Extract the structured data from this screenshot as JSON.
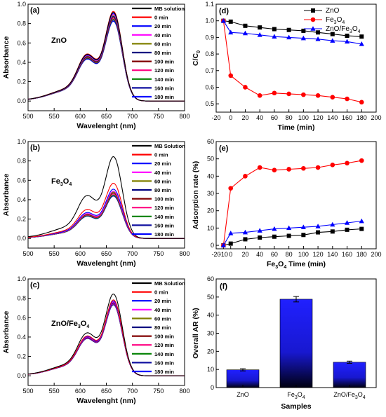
{
  "colors": {
    "black": "#000000",
    "red": "#ff0000",
    "blue": "#0000ff",
    "magenta": "#ff00ff",
    "olive": "#808000",
    "navy": "#000080",
    "dark_red": "#800000",
    "pink": "#ff0080",
    "green": "#008000",
    "dark_blue": "#1010a0",
    "bar_top": "#2020ff",
    "bar_bottom": "#000010"
  },
  "chart_data": [
    {
      "id": "a",
      "type": "line",
      "panel_label": "(a)",
      "annotation": {
        "main": "ZnO",
        "sub": ""
      },
      "xlabel": "Wavelenght (nm)",
      "ylabel": "Absorbance",
      "xlim": [
        500,
        800
      ],
      "ylim": [
        -0.1,
        1.0
      ],
      "xticks": [
        500,
        550,
        600,
        650,
        700,
        750,
        800
      ],
      "yticks": [
        0.0,
        0.2,
        0.4,
        0.6,
        0.8,
        1.0
      ],
      "legend_position": "top-right",
      "legend": [
        "MB solution",
        "0 min",
        "20 min",
        "40 min",
        "60 min",
        "80 min",
        "100 min",
        "120 min",
        "140 min",
        "160 min",
        "180 min"
      ],
      "series_colors": [
        "black",
        "red",
        "blue",
        "magenta",
        "olive",
        "navy",
        "dark_red",
        "pink",
        "green",
        "dark_blue",
        "blue"
      ],
      "peak_heights": [
        0.9,
        0.91,
        0.89,
        0.88,
        0.87,
        0.86,
        0.85,
        0.84,
        0.83,
        0.82,
        0.81
      ],
      "shoulder_ratio": 0.5
    },
    {
      "id": "b",
      "type": "line",
      "panel_label": "(b)",
      "annotation": {
        "main": "Fe",
        "sub": "3",
        "main2": "O",
        "sub2": "4"
      },
      "xlabel": "Wavelenght (nm)",
      "ylabel": "Absorbance",
      "xlim": [
        500,
        800
      ],
      "ylim": [
        -0.1,
        1.0
      ],
      "xticks": [
        500,
        550,
        600,
        650,
        700,
        750,
        800
      ],
      "yticks": [
        0.0,
        0.2,
        0.4,
        0.6,
        0.8,
        1.0
      ],
      "legend_position": "top-right",
      "legend": [
        "MB Solution",
        "0 min",
        "20 min",
        "40 min",
        "60 min",
        "80 min",
        "100 min",
        "120 min",
        "140 min",
        "160 min",
        "180 min"
      ],
      "series_colors": [
        "black",
        "red",
        "blue",
        "magenta",
        "olive",
        "navy",
        "dark_red",
        "pink",
        "green",
        "dark_blue",
        "blue"
      ],
      "peak_heights": [
        0.83,
        0.56,
        0.5,
        0.48,
        0.47,
        0.47,
        0.46,
        0.45,
        0.44,
        0.43,
        0.43
      ],
      "shoulder_ratio": 0.5
    },
    {
      "id": "c",
      "type": "line",
      "panel_label": "(c)",
      "annotation": {
        "main": "ZnO/Fe",
        "sub": "3",
        "main2": "O",
        "sub2": "4"
      },
      "xlabel": "Wavelenght (nm)",
      "ylabel": "Absorbance",
      "xlim": [
        500,
        800
      ],
      "ylim": [
        -0.1,
        1.0
      ],
      "xticks": [
        500,
        550,
        600,
        650,
        700,
        750,
        800
      ],
      "yticks": [
        0.0,
        0.2,
        0.4,
        0.6,
        0.8,
        1.0
      ],
      "legend_position": "top-right",
      "legend": [
        "MB Solution",
        "0 min",
        "20 min",
        "40 min",
        "60 min",
        "80 min",
        "100 min",
        "120 min",
        "140 min",
        "160 min",
        "180 min"
      ],
      "series_colors": [
        "black",
        "red",
        "blue",
        "magenta",
        "olive",
        "navy",
        "dark_red",
        "pink",
        "green",
        "dark_blue",
        "blue"
      ],
      "peak_heights": [
        0.83,
        0.77,
        0.76,
        0.75,
        0.75,
        0.74,
        0.74,
        0.73,
        0.73,
        0.72,
        0.72
      ],
      "shoulder_ratio": 0.5
    },
    {
      "id": "d",
      "type": "line",
      "panel_label": "(d)",
      "xlabel": "Time (min)",
      "ylabel": "C/C",
      "ylabel_sub": "0",
      "xlim": [
        -20,
        200
      ],
      "ylim": [
        0.45,
        1.1
      ],
      "xticks": [
        -20,
        0,
        20,
        40,
        60,
        80,
        100,
        120,
        140,
        160,
        180,
        200
      ],
      "yticks": [
        0.5,
        0.6,
        0.7,
        0.8,
        0.9,
        1.0,
        1.1
      ],
      "legend_position": "top-right",
      "x": [
        -10,
        0,
        20,
        40,
        60,
        80,
        100,
        120,
        140,
        160,
        180
      ],
      "series": [
        {
          "name": "ZnO",
          "name_sub": "",
          "color": "black",
          "marker": "square",
          "values": [
            1.0,
            0.995,
            0.97,
            0.96,
            0.95,
            0.945,
            0.94,
            0.93,
            0.92,
            0.91,
            0.905
          ]
        },
        {
          "name": "Fe",
          "name_sub": "3",
          "name2": "O",
          "name_sub2": "4",
          "color": "red",
          "marker": "circle",
          "values": [
            1.0,
            0.67,
            0.6,
            0.55,
            0.565,
            0.56,
            0.555,
            0.55,
            0.54,
            0.53,
            0.51
          ]
        },
        {
          "name": "ZnO/Fe",
          "name_sub": "3",
          "name2": "O",
          "name_sub2": "4",
          "color": "blue",
          "marker": "triangle",
          "values": [
            1.0,
            0.93,
            0.925,
            0.915,
            0.905,
            0.9,
            0.895,
            0.89,
            0.88,
            0.875,
            0.86
          ]
        }
      ]
    },
    {
      "id": "e",
      "type": "line",
      "panel_label": "(e)",
      "xlabel": "Fe",
      "xlabel_sub": "3",
      "xlabel2": "O",
      "xlabel_sub2": "4",
      "xlabel3": " Time (min)",
      "ylabel": "Adsorption rate (%)",
      "xlim": [
        -20,
        200
      ],
      "ylim": [
        -2,
        60
      ],
      "xticks": [
        -20,
        -10,
        0,
        20,
        40,
        60,
        80,
        100,
        120,
        140,
        160,
        180,
        200
      ],
      "yticks": [
        0,
        10,
        20,
        30,
        40,
        50,
        60
      ],
      "x": [
        -10,
        0,
        20,
        40,
        60,
        80,
        100,
        120,
        140,
        160,
        180
      ],
      "series": [
        {
          "color": "black",
          "marker": "square",
          "values": [
            0,
            1,
            3.5,
            4.5,
            5,
            5.5,
            6,
            7.5,
            8,
            9,
            9.5
          ]
        },
        {
          "color": "red",
          "marker": "circle",
          "values": [
            0,
            33,
            40,
            45,
            43.5,
            44,
            44.5,
            45,
            46.5,
            47.5,
            49
          ]
        },
        {
          "color": "blue",
          "marker": "triangle",
          "values": [
            0,
            7,
            7.5,
            8.5,
            9.5,
            10,
            10.5,
            11,
            12,
            13,
            14
          ]
        }
      ]
    },
    {
      "id": "f",
      "type": "bar",
      "panel_label": "(f)",
      "xlabel": "Samples",
      "ylabel": "Overall AR (%)",
      "ylim": [
        0,
        60
      ],
      "yticks": [
        0,
        10,
        20,
        30,
        40,
        50,
        60
      ],
      "categories": [
        {
          "main": "ZnO",
          "sub": ""
        },
        {
          "main": "Fe",
          "sub": "3",
          "main2": "O",
          "sub2": "4"
        },
        {
          "main": "ZnO/Fe",
          "sub": "3",
          "main2": "O",
          "sub2": "4"
        }
      ],
      "values": [
        9.8,
        48.8,
        14.0
      ],
      "errors": [
        0.6,
        1.5,
        0.6
      ]
    }
  ]
}
